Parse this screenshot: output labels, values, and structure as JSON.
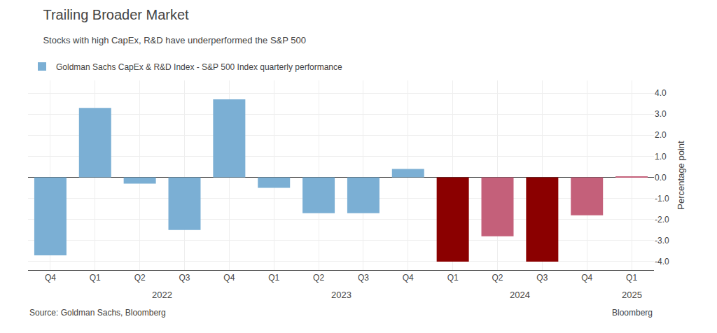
{
  "chart_data": {
    "type": "bar",
    "title": "Trailing Broader Market",
    "subtitle": "Stocks with high CapEx, R&D have underperformed the S&P 500",
    "y_label": "Percentage point",
    "source": "Source: Goldman Sachs, Bloomberg",
    "categories": [
      "Q4",
      "Q1",
      "Q2",
      "Q3",
      "Q4",
      "Q1",
      "Q2",
      "Q3",
      "Q4",
      "Q1",
      "Q2",
      "Q3",
      "Q4",
      "Q1"
    ],
    "series": [
      {
        "name": "Goldman Sachs CapEx & R&D Index - S&P 500 Index quarterly performance",
        "values": [
          -3.7,
          3.3,
          -0.3,
          -2.5,
          3.7,
          -0.5,
          -1.7,
          -1.7,
          0.4,
          -4.0,
          -2.8,
          -4.0,
          -1.8,
          0.05
        ],
        "colors": [
          "#7bafd4",
          "#7bafd4",
          "#7bafd4",
          "#7bafd4",
          "#7bafd4",
          "#7bafd4",
          "#7bafd4",
          "#7bafd4",
          "#7bafd4",
          "#8b0000",
          "#c4607a",
          "#8b0000",
          "#c4607a",
          "#c4607a"
        ]
      }
    ],
    "annotations": [
      {
        "text": "2022",
        "start": 1,
        "end": 4
      },
      {
        "text": "2023",
        "start": 5,
        "end": 8
      },
      {
        "text": "2024",
        "start": 9,
        "end": 12
      },
      {
        "text": "2025",
        "start": 13,
        "end": 13
      },
      {
        "text": "Bloomberg"
      }
    ],
    "ylim": [
      -4.4,
      4.6
    ],
    "yticks": [
      {
        "value": -4.0,
        "label": "-4.0"
      },
      {
        "value": -3.0,
        "label": "-3.0"
      },
      {
        "value": -2.0,
        "label": "-2.0"
      },
      {
        "value": -1.0,
        "label": "-1.0"
      },
      {
        "value": 0.0,
        "label": "0.0"
      },
      {
        "value": 1.0,
        "label": "1.0"
      },
      {
        "value": 2.0,
        "label": "2.0"
      },
      {
        "value": 3.0,
        "label": "3.0"
      },
      {
        "value": 4.0,
        "label": "4.0"
      }
    ],
    "grid": true,
    "legend": "top left"
  }
}
